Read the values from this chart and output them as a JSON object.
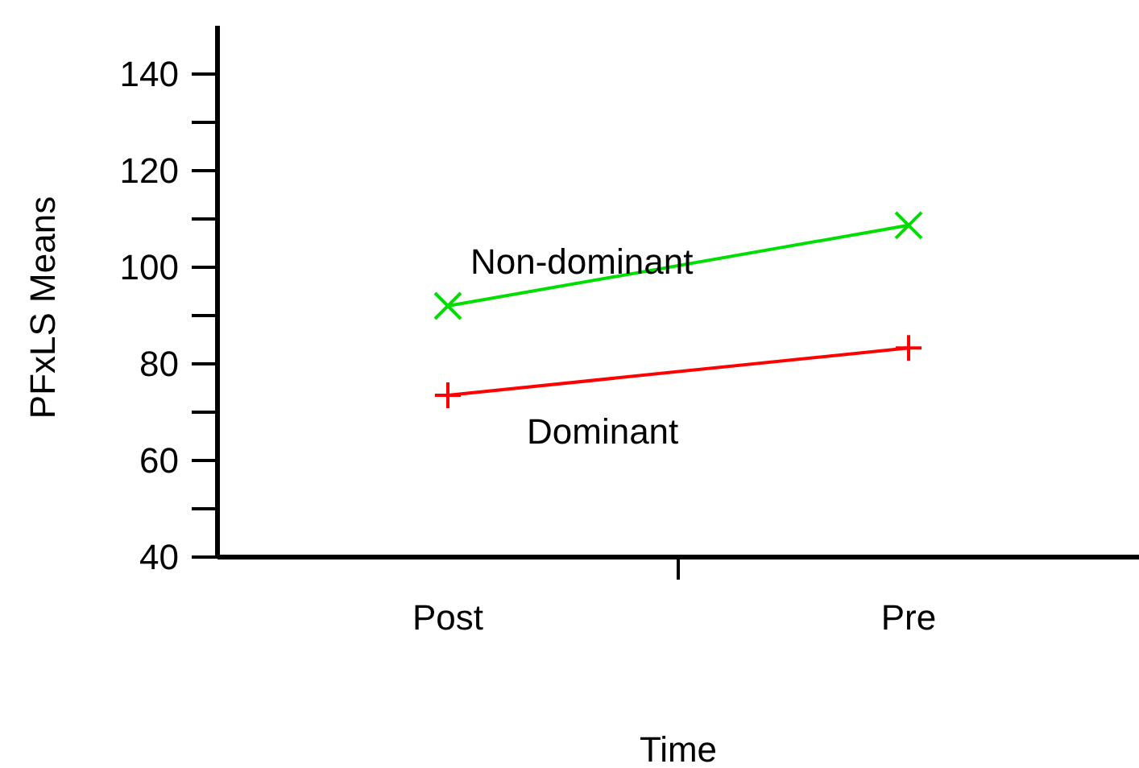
{
  "chart_data": {
    "type": "line",
    "xlabel": "Time",
    "ylabel": "PFxLS Means",
    "categories": [
      "Post",
      "Pre"
    ],
    "series": [
      {
        "name": "Dominant",
        "color": "#ff0000",
        "values": [
          73.5,
          83.3
        ],
        "marker": "plus"
      },
      {
        "name": "Non-dominant",
        "color": "#00dd00",
        "values": [
          92,
          108.7
        ],
        "marker": "cross"
      }
    ],
    "ylim": [
      40,
      150
    ],
    "yticks": [
      40,
      {
        "value": 50,
        "label": null
      },
      60,
      {
        "value": 70,
        "label": null
      },
      80,
      {
        "value": 90,
        "label": null
      },
      100,
      {
        "value": 110,
        "label": null
      },
      120,
      {
        "value": 130,
        "label": null
      },
      140
    ],
    "grid": false
  }
}
